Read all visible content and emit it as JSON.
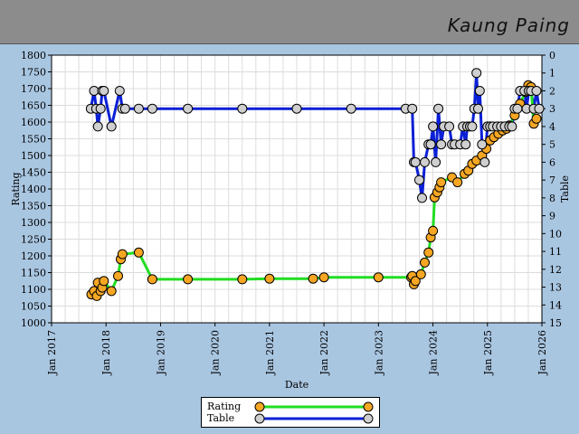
{
  "header": {
    "title": "Kaung Paing",
    "background": "#8c8c8c"
  },
  "legend": {
    "items": [
      {
        "label": "Rating",
        "line_color": "#22dd22",
        "marker_color": "#f5a623"
      },
      {
        "label": "Table",
        "line_color": "#0a1fd6",
        "marker_color": "#cfcfcf"
      }
    ]
  },
  "chart_data": {
    "type": "line",
    "xlabel": "Date",
    "ylabel": "Rating",
    "y2label": "Table",
    "x_ticks": [
      "Jan 2017",
      "Jan 2018",
      "Jan 2019",
      "Jan 2020",
      "Jan 2021",
      "Jan 2022",
      "Jan 2023",
      "Jan 2024",
      "Jan 2025",
      "Jan 2026"
    ],
    "xlim": [
      2017.0,
      2026.0
    ],
    "ylim": [
      1000,
      1800
    ],
    "y_ticks": [
      1000,
      1050,
      1100,
      1150,
      1200,
      1250,
      1300,
      1350,
      1400,
      1450,
      1500,
      1550,
      1600,
      1650,
      1700,
      1750,
      1800
    ],
    "y2lim": [
      0,
      15
    ],
    "y2_inverted": true,
    "y2_ticks": [
      0,
      1,
      2,
      3,
      4,
      5,
      6,
      7,
      8,
      9,
      10,
      11,
      12,
      13,
      14,
      15
    ],
    "grid": true,
    "legend_position": "bottom-center",
    "series": [
      {
        "name": "Rating",
        "axis": "left",
        "color": "#22dd22",
        "marker": "#f5a623",
        "marker_from_index": 0,
        "x": [
          2017.73,
          2017.78,
          2017.83,
          2017.85,
          2017.9,
          2017.93,
          2017.96,
          2018.1,
          2018.22,
          2018.27,
          2018.3,
          2018.6,
          2018.85,
          2019.5,
          2020.5,
          2021.0,
          2021.8,
          2022.0,
          2023.0,
          2023.6,
          2023.62,
          2023.65,
          2023.68,
          2023.78,
          2023.85,
          2023.92,
          2023.96,
          2024.0,
          2024.03,
          2024.08,
          2024.12,
          2024.15,
          2024.35,
          2024.45,
          2024.58,
          2024.65,
          2024.72,
          2024.8,
          2024.9,
          2024.98,
          2025.05,
          2025.12,
          2025.2,
          2025.28,
          2025.35,
          2025.4,
          2025.5,
          2025.6,
          2025.7,
          2025.75,
          2025.8,
          2025.85,
          2025.9
        ],
        "y": [
          1085,
          1095,
          1080,
          1120,
          1095,
          1105,
          1125,
          1095,
          1140,
          1190,
          1205,
          1210,
          1130,
          1130,
          1130,
          1132,
          1132,
          1136,
          1136,
          1136,
          1140,
          1115,
          1125,
          1145,
          1180,
          1210,
          1255,
          1275,
          1375,
          1390,
          1405,
          1420,
          1435,
          1420,
          1445,
          1455,
          1475,
          1485,
          1500,
          1520,
          1545,
          1555,
          1565,
          1575,
          1580,
          1590,
          1620,
          1655,
          1690,
          1710,
          1705,
          1595,
          1610
        ]
      },
      {
        "name": "Table",
        "axis": "right",
        "color": "#0a1fd6",
        "marker": "#cfcfcf",
        "x": [
          2017.72,
          2017.78,
          2017.82,
          2017.85,
          2017.9,
          2017.93,
          2017.96,
          2018.1,
          2018.25,
          2018.3,
          2018.35,
          2018.6,
          2018.85,
          2019.5,
          2020.5,
          2021.5,
          2022.5,
          2023.5,
          2023.62,
          2023.65,
          2023.68,
          2023.75,
          2023.8,
          2023.85,
          2023.92,
          2023.96,
          2024.0,
          2024.05,
          2024.1,
          2024.15,
          2024.2,
          2024.3,
          2024.35,
          2024.4,
          2024.5,
          2024.55,
          2024.6,
          2024.63,
          2024.68,
          2024.72,
          2024.76,
          2024.8,
          2024.83,
          2024.86,
          2024.9,
          2024.95,
          2025.0,
          2025.05,
          2025.1,
          2025.18,
          2025.25,
          2025.32,
          2025.4,
          2025.45,
          2025.5,
          2025.55,
          2025.6,
          2025.68,
          2025.72,
          2025.76,
          2025.8,
          2025.85,
          2025.9,
          2025.95
        ],
        "y": [
          3,
          2,
          3,
          4,
          3,
          2,
          2,
          4,
          2,
          3,
          3,
          3,
          3,
          3,
          3,
          3,
          3,
          3,
          3,
          6,
          6,
          7,
          8,
          6,
          5,
          5,
          4,
          6,
          3,
          5,
          4,
          4,
          5,
          5,
          5,
          4,
          5,
          4,
          4,
          4,
          3,
          1,
          3,
          2,
          5,
          6,
          4,
          4,
          4,
          4,
          4,
          4,
          4,
          4,
          3,
          3,
          2,
          2,
          3,
          2,
          2,
          3,
          2,
          3
        ]
      }
    ]
  }
}
